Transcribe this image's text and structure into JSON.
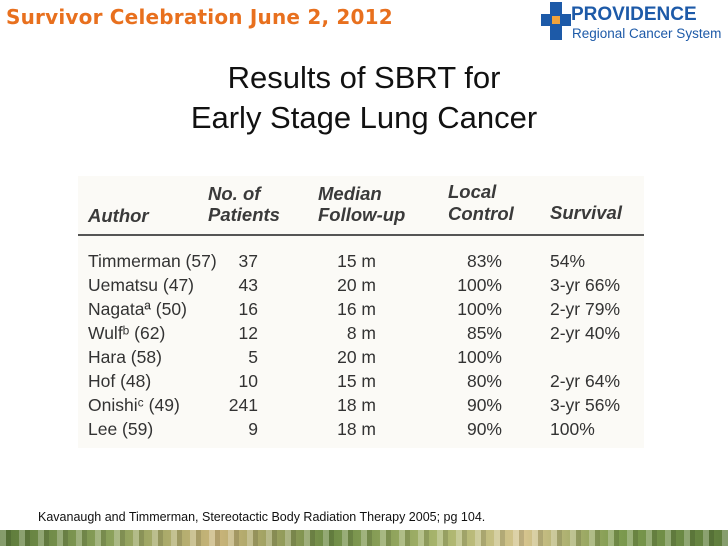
{
  "header": {
    "event_title": "Survivor Celebration  June 2, 2012",
    "logo_name": "PROVIDENCE",
    "logo_subtitle": "Regional Cancer System"
  },
  "slide": {
    "title_line1": "Results of SBRT for",
    "title_line2": "Early Stage Lung Cancer"
  },
  "table": {
    "headers": {
      "author": "Author",
      "patients_1": "No. of",
      "patients_2": "Patients",
      "followup_1": "Median",
      "followup_2": "Follow-up",
      "control_1": "Local",
      "control_2": "Control",
      "survival": "Survival"
    },
    "rows": [
      {
        "author": "Timmerman (57)",
        "patients": "37",
        "followup": "15 m",
        "control": "83%",
        "survival": "54%"
      },
      {
        "author": "Uematsu (47)",
        "patients": "43",
        "followup": "20 m",
        "control": "100%",
        "survival": "3-yr 66%"
      },
      {
        "author": "Nagataª (50)",
        "patients": "16",
        "followup": "16 m",
        "control": "100%",
        "survival": "2-yr 79%"
      },
      {
        "author": "Wulfᵇ (62)",
        "patients": "12",
        "followup": "8 m",
        "control": "85%",
        "survival": "2-yr 40%"
      },
      {
        "author": "Hara (58)",
        "patients": "5",
        "followup": "20 m",
        "control": "100%",
        "survival": ""
      },
      {
        "author": "Hof (48)",
        "patients": "10",
        "followup": "15 m",
        "control": "80%",
        "survival": "2-yr 64%"
      },
      {
        "author": "Onishiᶜ (49)",
        "patients": "241",
        "followup": "18 m",
        "control": "90%",
        "survival": "3-yr 56%"
      },
      {
        "author": "Lee (59)",
        "patients": "9",
        "followup": "18 m",
        "control": "90%",
        "survival": "100%"
      }
    ]
  },
  "source": "Kavanaugh and Timmerman, Stereotactic Body Radiation Therapy 2005; pg 104.",
  "colors": {
    "event_title": "#e8701e",
    "brand_blue": "#1d5aa8",
    "brand_orange": "#f2a33a"
  }
}
